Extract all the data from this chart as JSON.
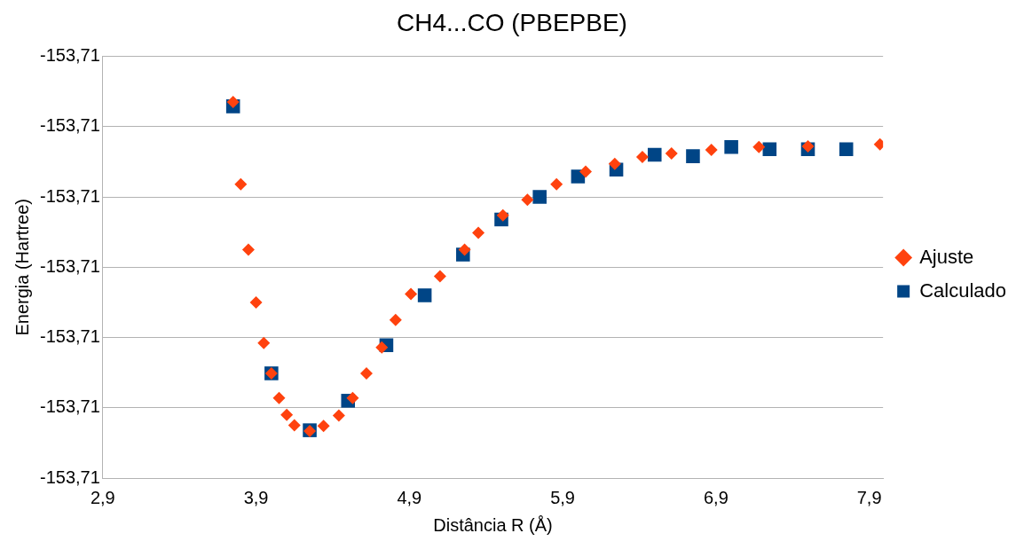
{
  "chart_data": {
    "type": "scatter",
    "title": "CH4...CO (PBEPBE)",
    "xlabel": "Distância R (Å)",
    "ylabel": "Energia (Hartree)",
    "xlim": [
      2.9,
      7.99
    ],
    "xticks": [
      {
        "value": 2.9,
        "label": "2,9"
      },
      {
        "value": 3.9,
        "label": "3,9"
      },
      {
        "value": 4.9,
        "label": "4,9"
      },
      {
        "value": 5.9,
        "label": "5,9"
      },
      {
        "value": 6.9,
        "label": "6,9"
      },
      {
        "value": 7.9,
        "label": "7,9"
      }
    ],
    "ylim": [
      -153.713,
      -153.707
    ],
    "yticks": [
      {
        "value": -153.713,
        "label": "-153,71"
      },
      {
        "value": -153.712,
        "label": "-153,71"
      },
      {
        "value": -153.711,
        "label": "-153,71"
      },
      {
        "value": -153.71,
        "label": "-153,71"
      },
      {
        "value": -153.709,
        "label": "-153,71"
      },
      {
        "value": -153.708,
        "label": "-153,71"
      },
      {
        "value": -153.707,
        "label": "-153,71"
      }
    ],
    "grid": "y",
    "legend": "right",
    "series": [
      {
        "name": "Ajuste",
        "color": "#ff420e",
        "marker": "diamond",
        "x": [
          3.75,
          3.8,
          3.85,
          3.9,
          3.95,
          4.0,
          4.05,
          4.1,
          4.15,
          4.25,
          4.34,
          4.44,
          4.53,
          4.62,
          4.72,
          4.81,
          4.91,
          5.1,
          5.26,
          5.35,
          5.51,
          5.67,
          5.86,
          6.05,
          6.24,
          6.42,
          6.61,
          6.87,
          7.18,
          7.5,
          7.97
        ],
        "values": [
          -153.70765,
          -153.70882,
          -153.70975,
          -153.7105,
          -153.71108,
          -153.71151,
          -153.71186,
          -153.7121,
          -153.71225,
          -153.71233,
          -153.71226,
          -153.71211,
          -153.71186,
          -153.71151,
          -153.71114,
          -153.71075,
          -153.71038,
          -153.71013,
          -153.70975,
          -153.70951,
          -153.70926,
          -153.70904,
          -153.70882,
          -153.70864,
          -153.70853,
          -153.70843,
          -153.70838,
          -153.70833,
          -153.70829,
          -153.70828,
          -153.70825
        ]
      },
      {
        "name": "Calculado",
        "color": "#004586",
        "marker": "square",
        "x": [
          3.75,
          4.0,
          4.25,
          4.5,
          4.75,
          5.0,
          5.25,
          5.5,
          5.75,
          6.0,
          6.25,
          6.5,
          6.75,
          7.0,
          7.25,
          7.5,
          7.75
        ],
        "values": [
          -153.70771,
          -153.71151,
          -153.71232,
          -153.7119,
          -153.71111,
          -153.7104,
          -153.70982,
          -153.70932,
          -153.709,
          -153.70871,
          -153.70861,
          -153.7084,
          -153.70842,
          -153.70829,
          -153.70832,
          -153.70832,
          -153.70832
        ]
      }
    ]
  }
}
